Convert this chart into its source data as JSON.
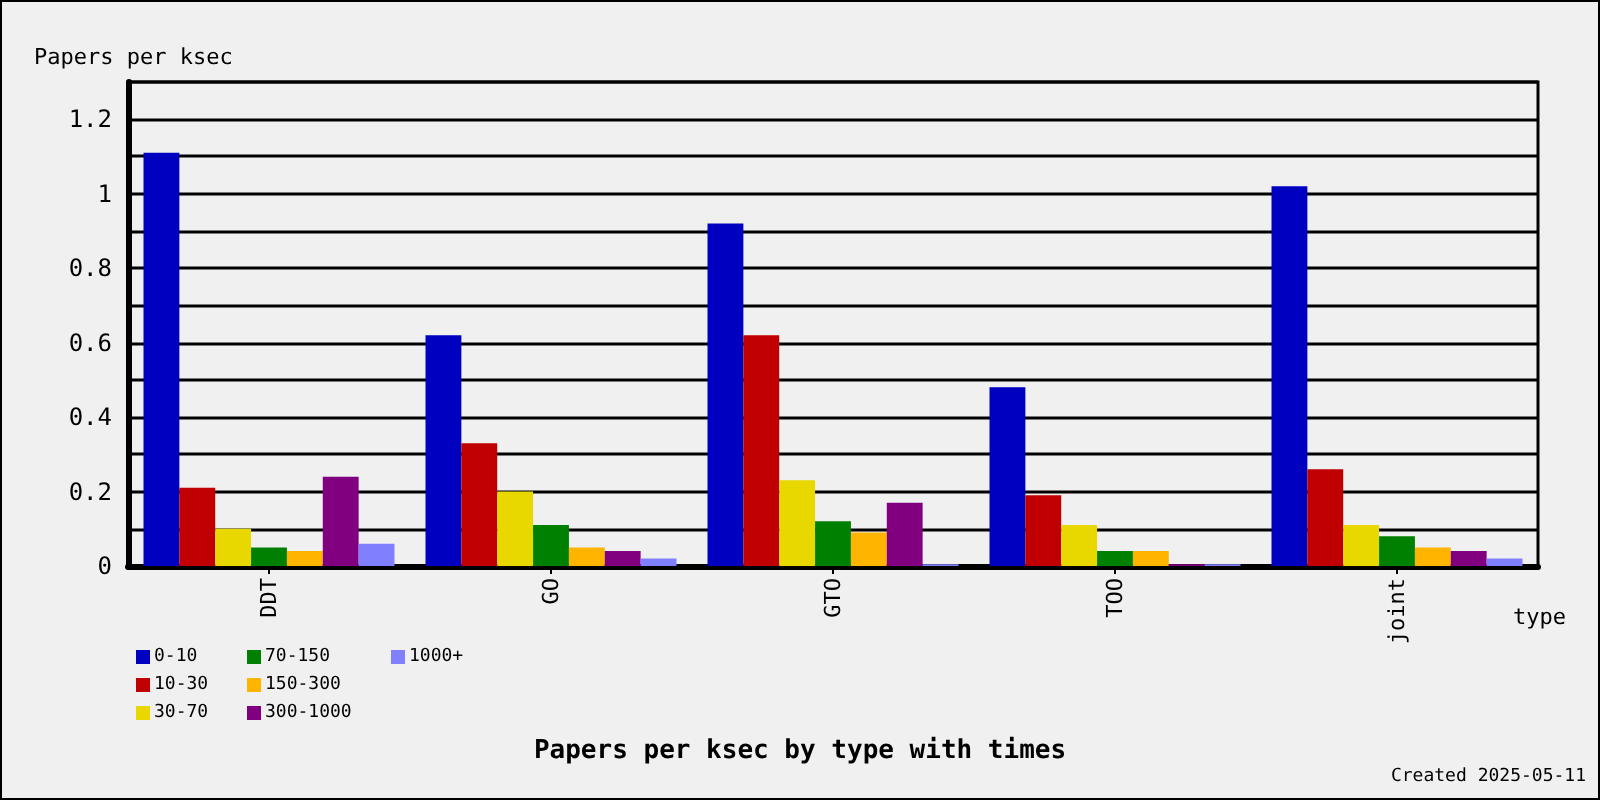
{
  "chart_data": {
    "type": "bar",
    "title": "Papers per ksec by type with times",
    "ylabel": "Papers per ksec",
    "xlabel": "type",
    "annotations": [
      "Created 2025-05-11"
    ],
    "categories": [
      "DDT",
      "GO",
      "GTO",
      "TOO",
      "joint"
    ],
    "series": [
      {
        "name": "0-10",
        "color": "#0000c0",
        "values": [
          1.11,
          0.62,
          0.92,
          0.48,
          1.02
        ]
      },
      {
        "name": "10-30",
        "color": "#c00000",
        "values": [
          0.21,
          0.33,
          0.62,
          0.19,
          0.26
        ]
      },
      {
        "name": "30-70",
        "color": "#e8d800",
        "values": [
          0.1,
          0.2,
          0.23,
          0.11,
          0.11
        ]
      },
      {
        "name": "70-150",
        "color": "#008000",
        "values": [
          0.05,
          0.11,
          0.12,
          0.04,
          0.08
        ]
      },
      {
        "name": "150-300",
        "color": "#ffb400",
        "values": [
          0.04,
          0.05,
          0.09,
          0.04,
          0.05
        ]
      },
      {
        "name": "300-1000",
        "color": "#800080",
        "values": [
          0.24,
          0.04,
          0.17,
          0.005,
          0.04
        ]
      },
      {
        "name": "1000+",
        "color": "#8080ff",
        "values": [
          0.06,
          0.02,
          0.005,
          0.005,
          0.02
        ]
      }
    ],
    "ylim": [
      0,
      1.3
    ],
    "yticks": [
      0,
      {
        "value": 0.1,
        "label": null
      },
      0.2,
      {
        "value": 0.3,
        "label": null
      },
      0.4,
      {
        "value": 0.5,
        "label": null
      },
      0.6,
      {
        "value": 0.7,
        "label": null
      },
      0.8,
      {
        "value": 0.9,
        "label": null
      },
      1,
      {
        "value": 1.1,
        "label": null
      },
      1.2,
      {
        "value": 1.3,
        "label": null
      }
    ],
    "grid": "y",
    "legend": "bottom left"
  }
}
